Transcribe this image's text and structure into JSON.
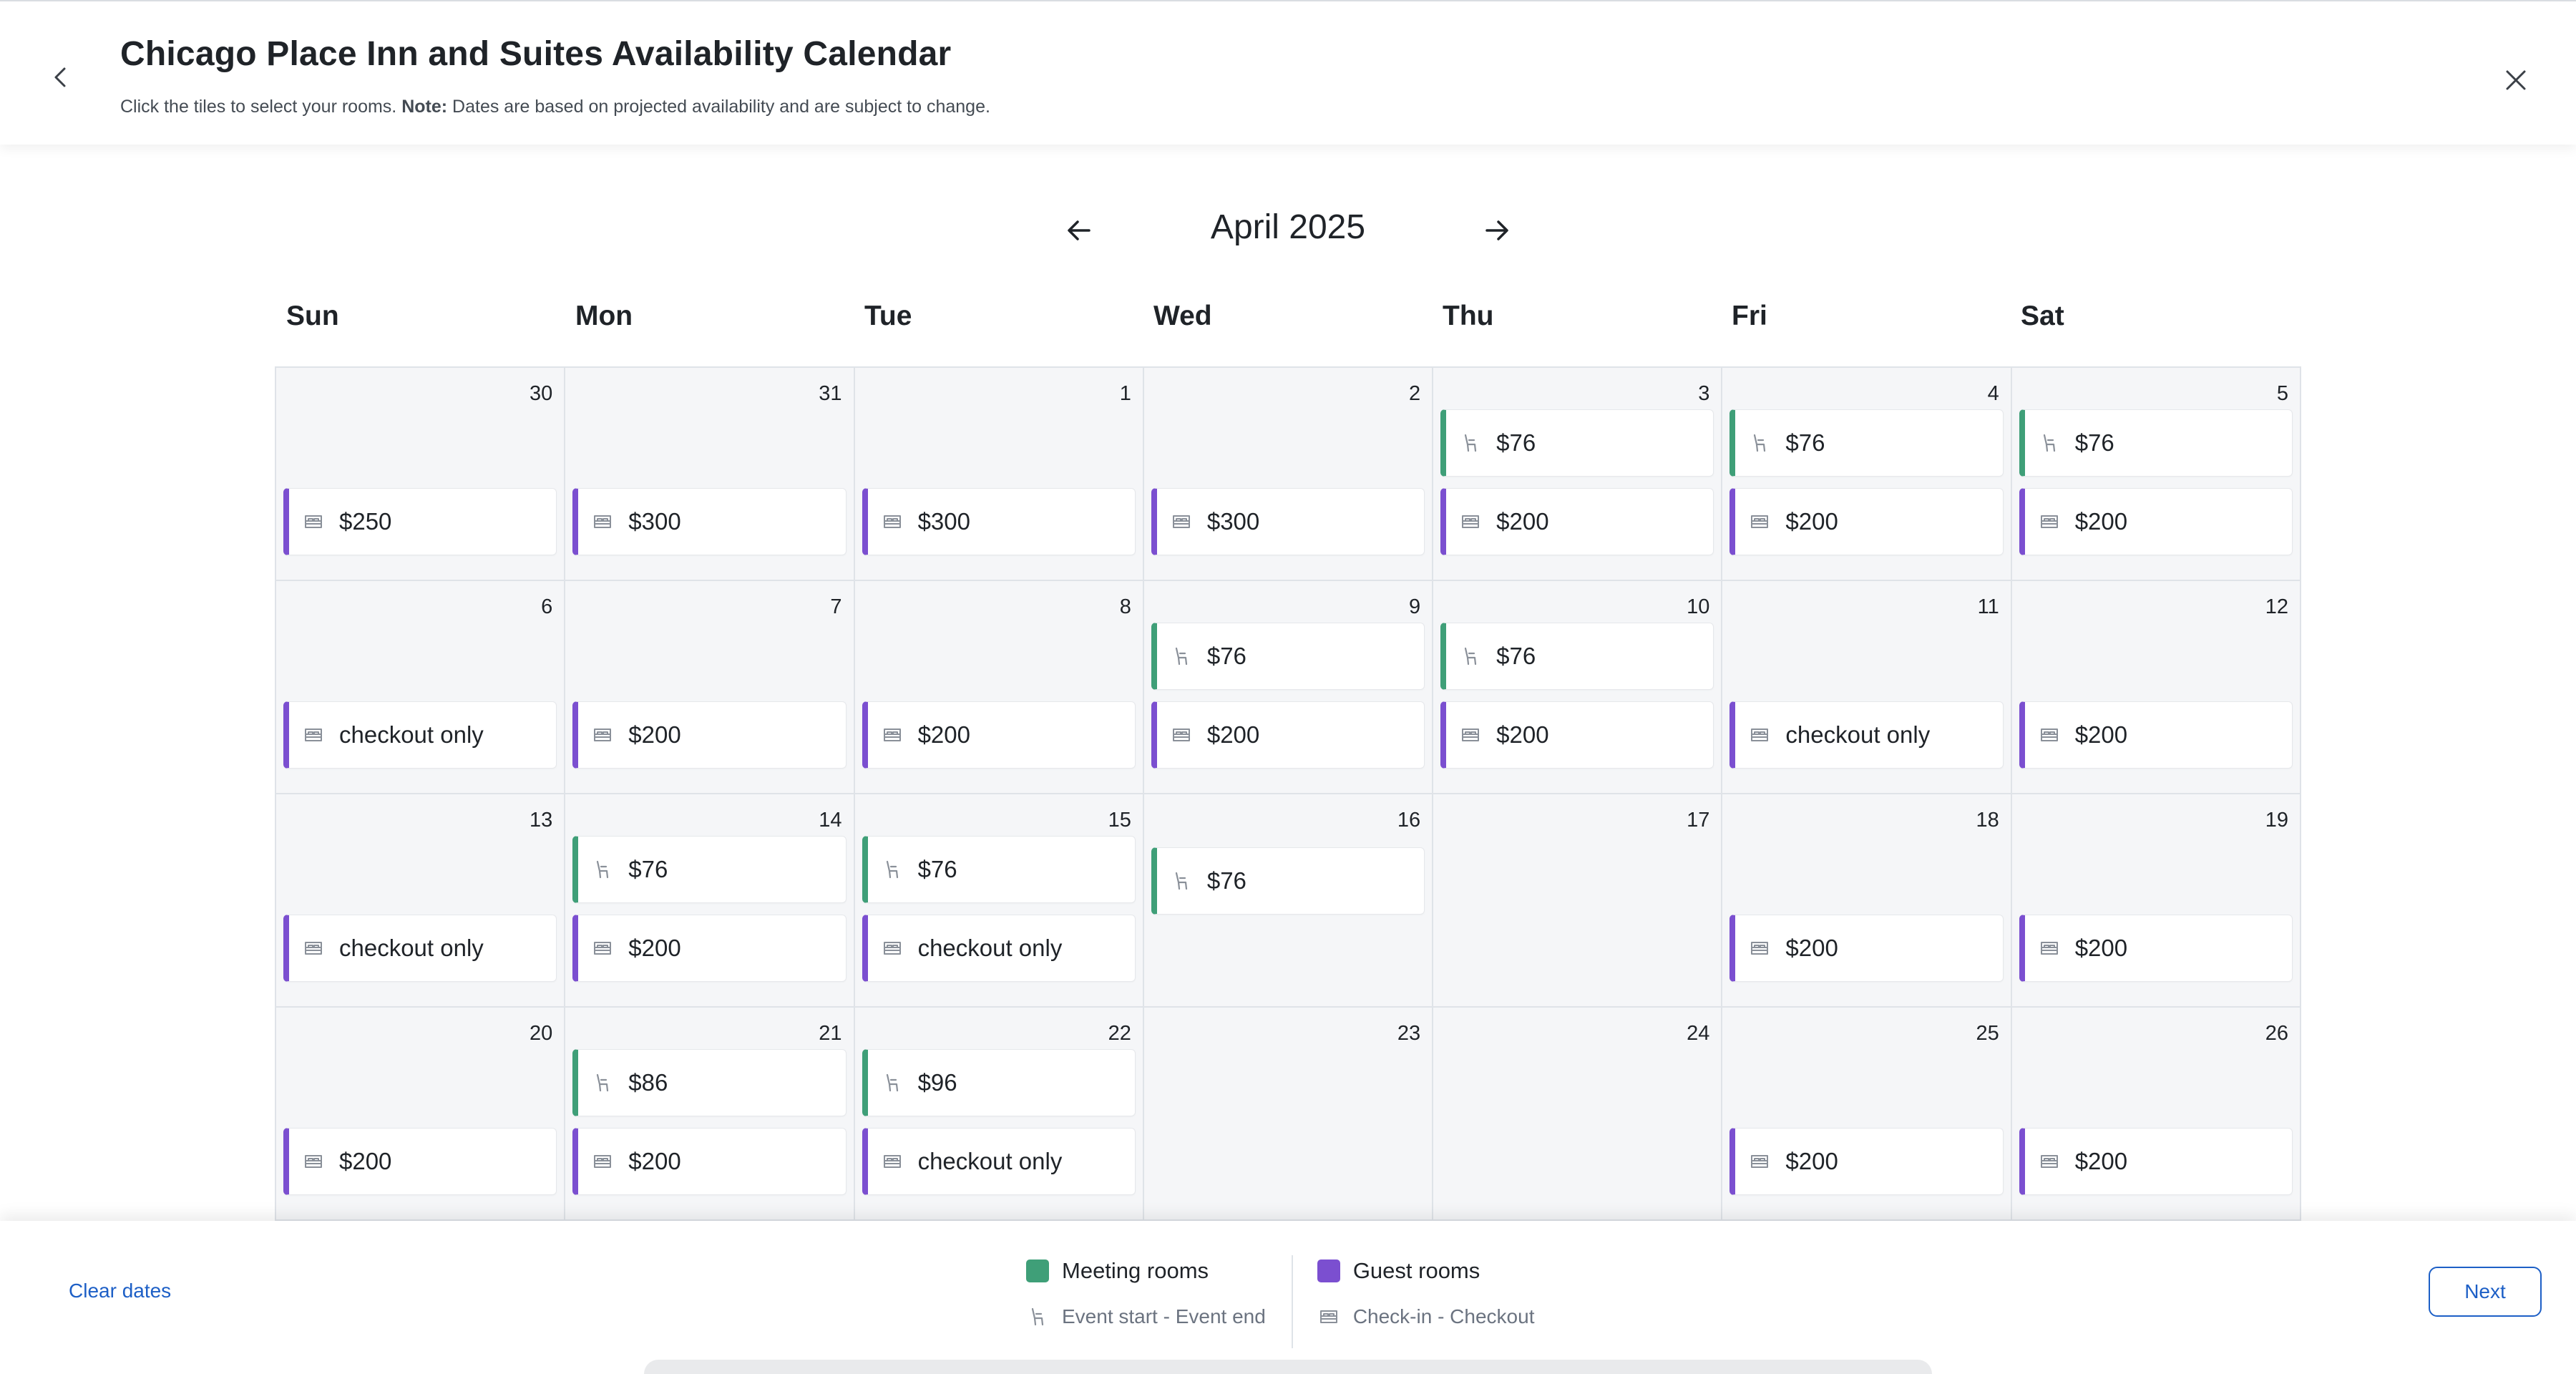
{
  "header": {
    "title": "Chicago Place Inn and Suites Availability Calendar",
    "subtitle_prefix": "Click the tiles to select your rooms.",
    "note_label": "Note:",
    "note_text": "Dates are based on projected availability and are subject to change."
  },
  "calendar": {
    "month_label": "April 2025",
    "weekdays": [
      "Sun",
      "Mon",
      "Tue",
      "Wed",
      "Thu",
      "Fri",
      "Sat"
    ],
    "days": [
      {
        "day": "30",
        "tiles": [
          {
            "type": "guest",
            "text": "$250"
          }
        ]
      },
      {
        "day": "31",
        "tiles": [
          {
            "type": "guest",
            "text": "$300"
          }
        ]
      },
      {
        "day": "1",
        "tiles": [
          {
            "type": "guest",
            "text": "$300"
          }
        ]
      },
      {
        "day": "2",
        "tiles": [
          {
            "type": "guest",
            "text": "$300"
          }
        ]
      },
      {
        "day": "3",
        "tiles": [
          {
            "type": "meeting",
            "text": "$76"
          },
          {
            "type": "guest",
            "text": "$200"
          }
        ]
      },
      {
        "day": "4",
        "tiles": [
          {
            "type": "meeting",
            "text": "$76"
          },
          {
            "type": "guest",
            "text": "$200"
          }
        ]
      },
      {
        "day": "5",
        "tiles": [
          {
            "type": "meeting",
            "text": "$76"
          },
          {
            "type": "guest",
            "text": "$200"
          }
        ]
      },
      {
        "day": "6",
        "tiles": [
          {
            "type": "guest",
            "text": "checkout only"
          }
        ]
      },
      {
        "day": "7",
        "tiles": [
          {
            "type": "guest",
            "text": "$200"
          }
        ]
      },
      {
        "day": "8",
        "tiles": [
          {
            "type": "guest",
            "text": "$200"
          }
        ]
      },
      {
        "day": "9",
        "tiles": [
          {
            "type": "meeting",
            "text": "$76"
          },
          {
            "type": "guest",
            "text": "$200"
          }
        ]
      },
      {
        "day": "10",
        "tiles": [
          {
            "type": "meeting",
            "text": "$76"
          },
          {
            "type": "guest",
            "text": "$200"
          }
        ]
      },
      {
        "day": "11",
        "tiles": [
          {
            "type": "guest",
            "text": "checkout only"
          }
        ]
      },
      {
        "day": "12",
        "tiles": [
          {
            "type": "guest",
            "text": "$200"
          }
        ]
      },
      {
        "day": "13",
        "tiles": [
          {
            "type": "guest",
            "text": "checkout only"
          }
        ]
      },
      {
        "day": "14",
        "tiles": [
          {
            "type": "meeting",
            "text": "$76"
          },
          {
            "type": "guest",
            "text": "$200"
          }
        ]
      },
      {
        "day": "15",
        "tiles": [
          {
            "type": "meeting",
            "text": "$76"
          },
          {
            "type": "guest",
            "text": "checkout only"
          }
        ]
      },
      {
        "day": "16",
        "tiles": [
          {
            "type": "meeting",
            "text": "$76"
          }
        ],
        "tiles_align": "upper"
      },
      {
        "day": "17",
        "tiles": []
      },
      {
        "day": "18",
        "tiles": [
          {
            "type": "guest",
            "text": "$200"
          }
        ]
      },
      {
        "day": "19",
        "tiles": [
          {
            "type": "guest",
            "text": "$200"
          }
        ]
      },
      {
        "day": "20",
        "tiles": [
          {
            "type": "guest",
            "text": "$200"
          }
        ]
      },
      {
        "day": "21",
        "tiles": [
          {
            "type": "meeting",
            "text": "$86"
          },
          {
            "type": "guest",
            "text": "$200"
          }
        ]
      },
      {
        "day": "22",
        "tiles": [
          {
            "type": "meeting",
            "text": "$96"
          },
          {
            "type": "guest",
            "text": "checkout only"
          }
        ]
      },
      {
        "day": "23",
        "tiles": []
      },
      {
        "day": "24",
        "tiles": []
      },
      {
        "day": "25",
        "tiles": [
          {
            "type": "guest",
            "text": "$200"
          }
        ]
      },
      {
        "day": "26",
        "tiles": [
          {
            "type": "guest",
            "text": "$200"
          }
        ]
      }
    ]
  },
  "footer": {
    "clear_dates": "Clear dates",
    "legend": {
      "meeting_label": "Meeting rooms",
      "meeting_sub": "Event start - Event end",
      "meeting_color": "#3f9f78",
      "guest_label": "Guest rooms",
      "guest_sub": "Check-in - Checkout",
      "guest_color": "#7b4fd0"
    },
    "next_label": "Next"
  },
  "icons": {
    "meeting": "chair-icon",
    "guest": "bed-icon"
  }
}
